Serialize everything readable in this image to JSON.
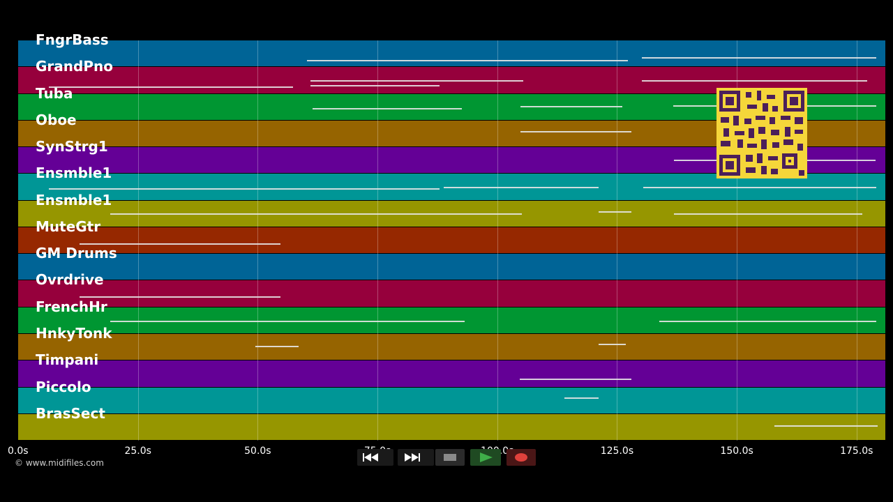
{
  "tracks": [
    {
      "name": "FngrBass",
      "color": "#006496"
    },
    {
      "name": "GrandPno",
      "color": "#96003c"
    },
    {
      "name": "Tuba",
      "color": "#009632"
    },
    {
      "name": "Oboe",
      "color": "#966400"
    },
    {
      "name": "SynStrg1",
      "color": "#640096"
    },
    {
      "name": "Ensmble1",
      "color": "#009696"
    },
    {
      "name": "Ensmble1",
      "color": "#969600"
    },
    {
      "name": "MuteGtr",
      "color": "#962800"
    },
    {
      "name": "GM Drums",
      "color": "#006496"
    },
    {
      "name": "Ovrdrive",
      "color": "#96003c"
    },
    {
      "name": "FrenchHr",
      "color": "#009632"
    },
    {
      "name": "HnkyTonk",
      "color": "#966400"
    },
    {
      "name": "Timpani",
      "color": "#640096"
    },
    {
      "name": "Piccolo",
      "color": "#009696"
    },
    {
      "name": "BrasSect",
      "color": "#969600"
    }
  ],
  "timeline": {
    "max_seconds": 181,
    "ticks": [
      "0.0s",
      "25.0s",
      "50.0s",
      "75.0s",
      "100.0s",
      "125.0s",
      "150.0s",
      "175.0s"
    ]
  },
  "copyright": "© www.midifiles.com",
  "transport": {
    "rewind": "rewind-icon",
    "fast_forward": "fast-forward-icon",
    "stop": "stop-icon",
    "play": "play-icon",
    "record": "record-icon",
    "play_color": "#3fae49",
    "record_color": "#e0413c"
  }
}
